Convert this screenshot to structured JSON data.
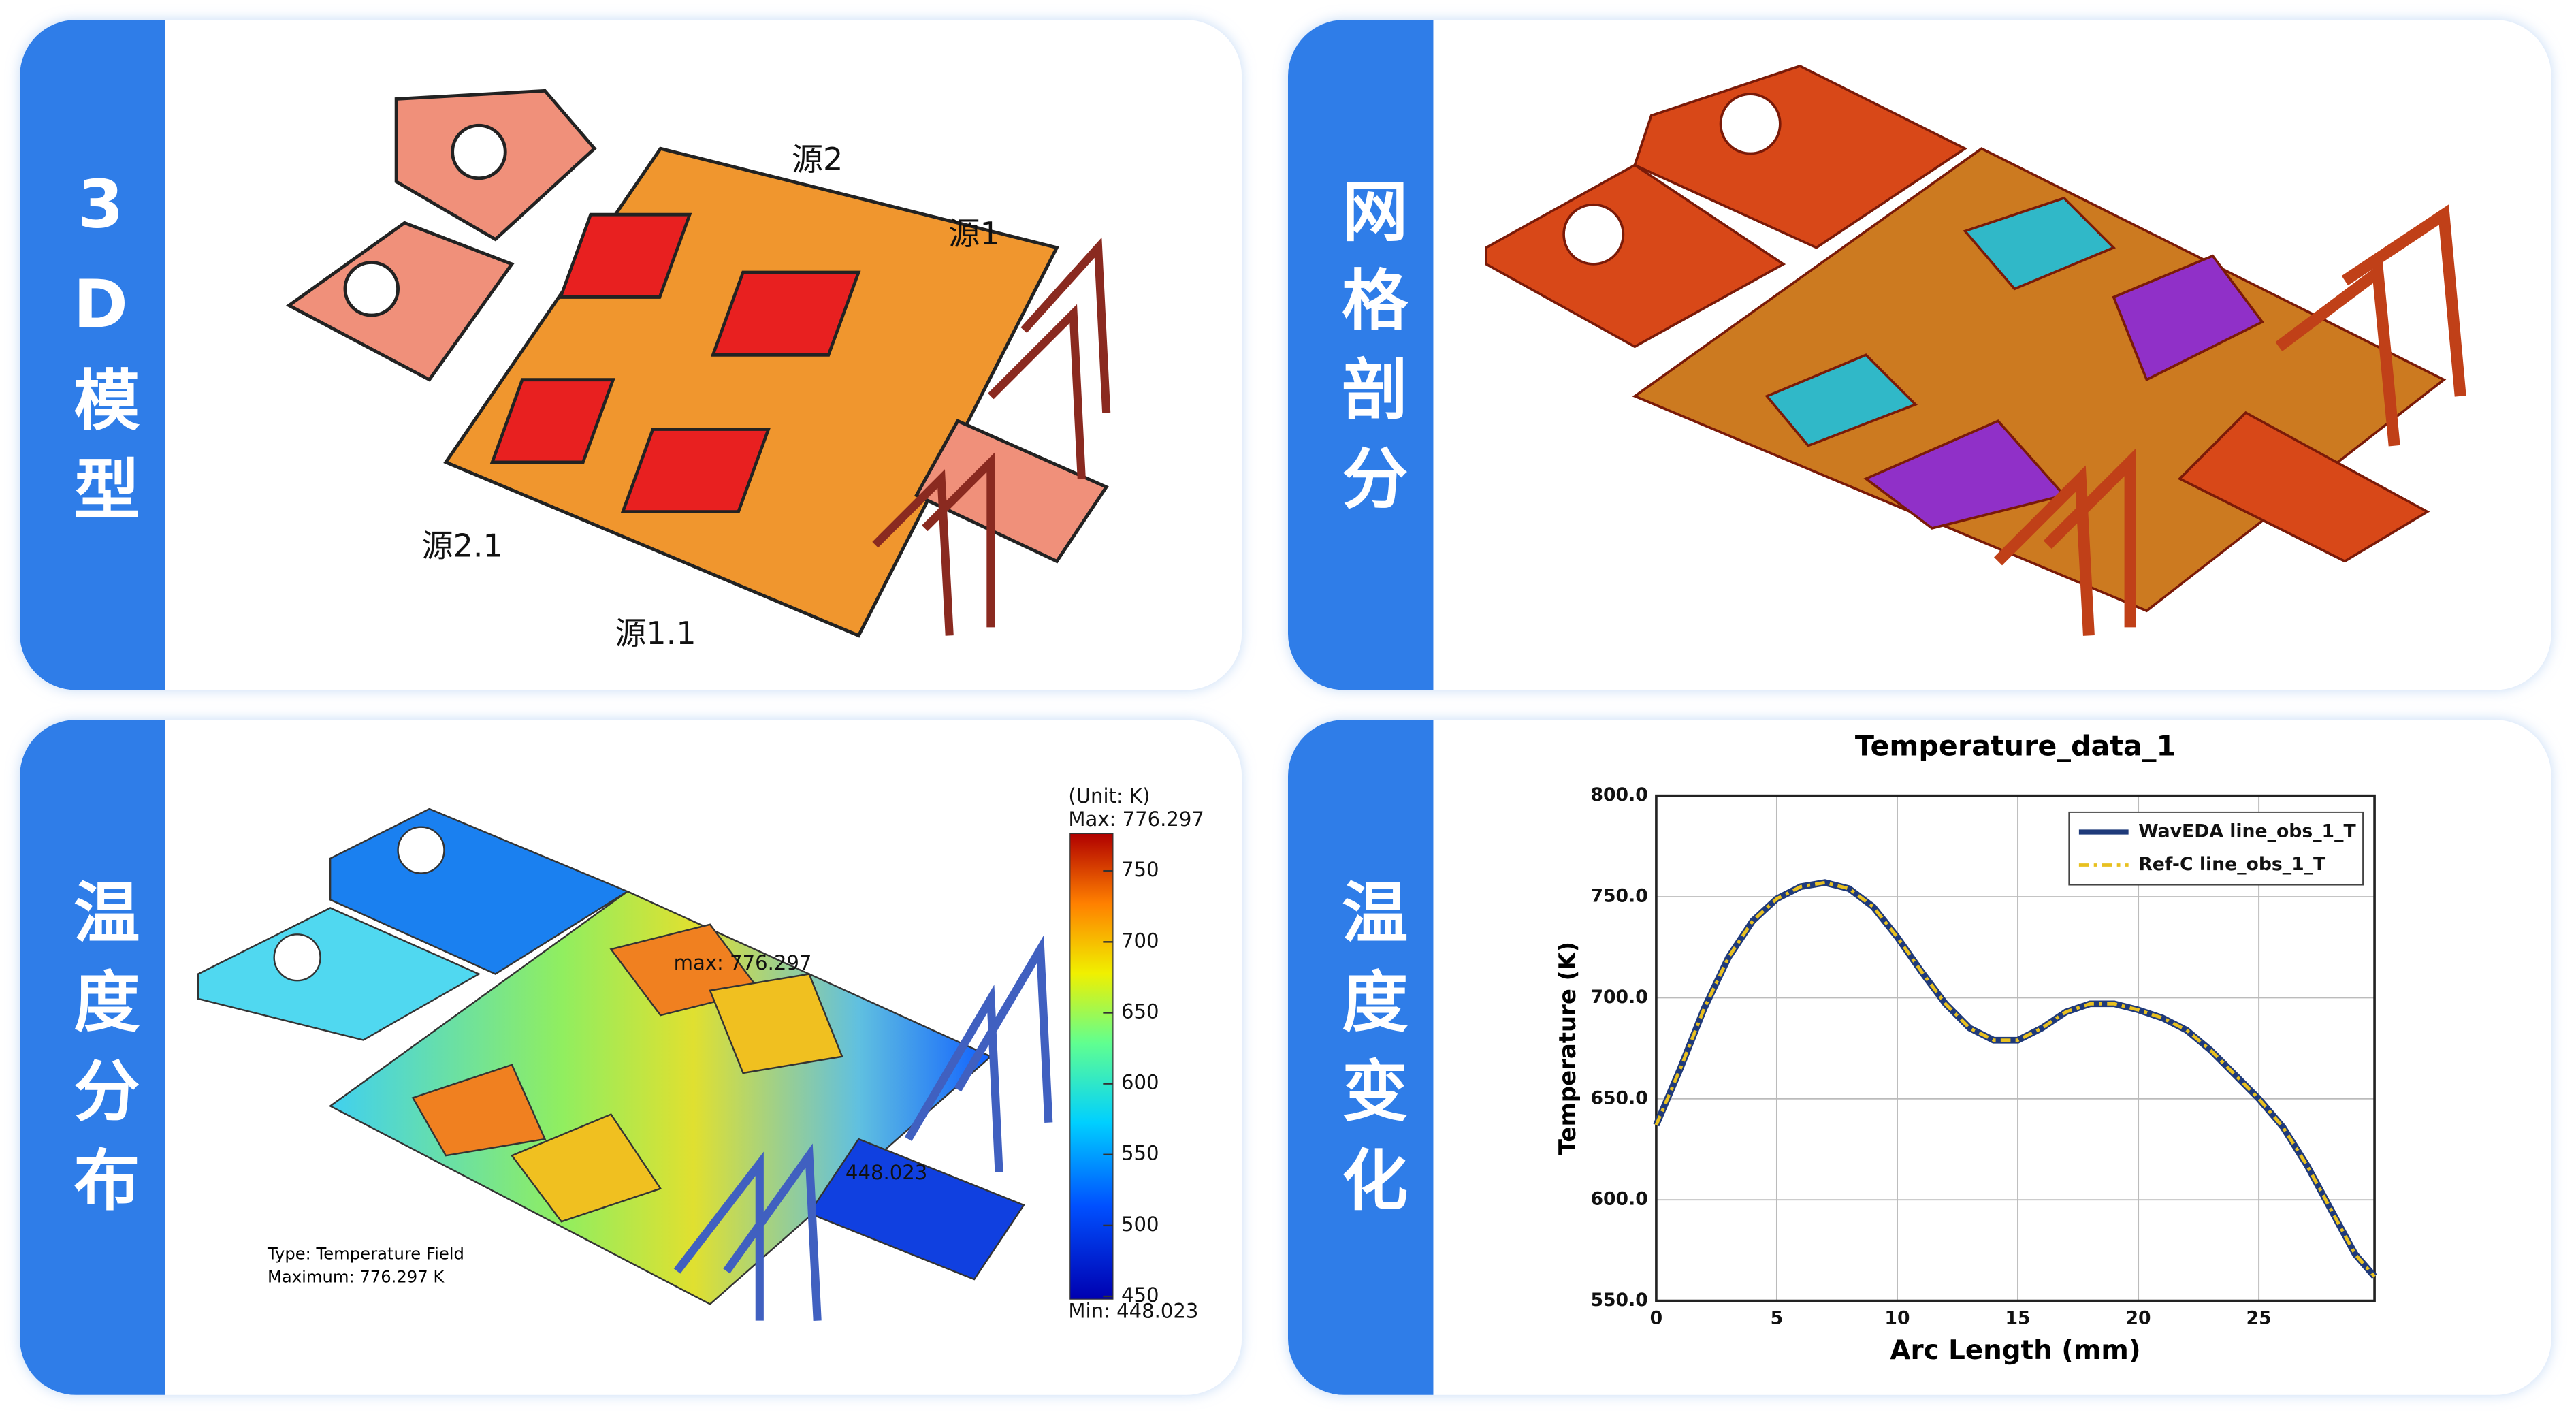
{
  "panels": [
    {
      "label": "3D模型",
      "annotations": [
        "源2",
        "源1",
        "源2.1",
        "源1.1"
      ]
    },
    {
      "label": "网格剖分"
    },
    {
      "label": "温度分布",
      "colorbar": {
        "unit": "(Unit: K)",
        "max_label": "Max: 776.297",
        "min_label": "Min: 448.023",
        "lim": [
          448.023,
          776.297
        ],
        "ticks": [
          750,
          700,
          650,
          600,
          550,
          500,
          450
        ]
      },
      "annotations": [
        "max: 776.297",
        "448.023",
        "Type: Temperature Field",
        "Maximum: 776.297 K"
      ]
    },
    {
      "label": "温度变化"
    }
  ],
  "chart_data": {
    "type": "line",
    "title": "Temperature_data_1",
    "x_label": "Arc Length (mm)",
    "y_label": "Temperature (K)",
    "x": [
      0,
      1,
      2,
      3,
      4,
      5,
      6,
      7,
      8,
      9,
      10,
      11,
      12,
      13,
      14,
      15,
      16,
      17,
      18,
      19,
      20,
      21,
      22,
      23,
      24,
      25,
      26,
      27,
      28,
      29,
      29.8
    ],
    "series": [
      {
        "name": "WavEDA line_obs_1_T",
        "color": "#1f3a7a",
        "values": [
          637,
          665,
          695,
          720,
          738,
          749,
          755,
          757,
          754,
          745,
          730,
          713,
          697,
          685,
          679,
          679,
          685,
          693,
          697,
          697,
          694,
          690,
          684,
          674,
          662,
          650,
          636,
          617,
          595,
          573,
          562
        ]
      },
      {
        "name": "Ref-C line_obs_1_T",
        "color": "#e8c020",
        "values": [
          637,
          665,
          695,
          720,
          738,
          749,
          755,
          757,
          754,
          745,
          730,
          713,
          697,
          685,
          679,
          679,
          685,
          693,
          697,
          697,
          694,
          690,
          684,
          674,
          662,
          650,
          636,
          617,
          595,
          573,
          562
        ]
      }
    ],
    "xlim": [
      0,
      29.8
    ],
    "xticks": [
      0,
      5,
      10,
      15,
      20,
      25
    ],
    "ylim": [
      550,
      800
    ],
    "yticks": [
      {
        "value": 550,
        "label": "550.0"
      },
      {
        "value": 600,
        "label": "600.0"
      },
      {
        "value": 650,
        "label": "650.0"
      },
      {
        "value": 700,
        "label": "700.0"
      },
      {
        "value": 750,
        "label": "750.0"
      },
      {
        "value": 800,
        "label": "800.0"
      }
    ],
    "grid": true,
    "legend": "upper right"
  }
}
